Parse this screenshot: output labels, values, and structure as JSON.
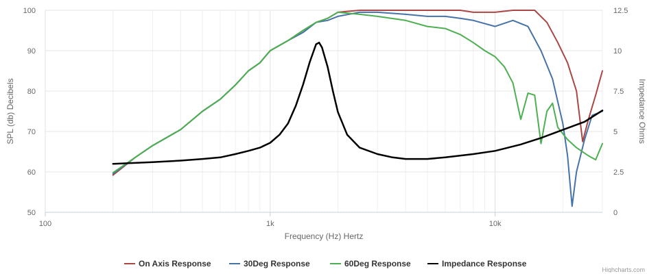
{
  "chart_data": {
    "type": "line",
    "xlabel": "Frequency (Hz) Hertz",
    "ylabel": "SPL (db) Decibels",
    "y2label": "Impedance Ohms",
    "x_scale": "log",
    "xlim": [
      100,
      30000
    ],
    "ylim": [
      50,
      100
    ],
    "y2lim": [
      0,
      12.5
    ],
    "x_ticks": [
      {
        "value": 100,
        "label": "100"
      },
      {
        "value": 1000,
        "label": "1k"
      },
      {
        "value": 10000,
        "label": "10k"
      }
    ],
    "y_ticks": [
      {
        "value": 50,
        "label": "50"
      },
      {
        "value": 60,
        "label": "60"
      },
      {
        "value": 70,
        "label": "70"
      },
      {
        "value": 80,
        "label": "80"
      },
      {
        "value": 90,
        "label": "90"
      },
      {
        "value": 100,
        "label": "100"
      }
    ],
    "y2_ticks": [
      {
        "value": 0,
        "label": "0"
      },
      {
        "value": 2.5,
        "label": "2.5"
      },
      {
        "value": 5,
        "label": "5"
      },
      {
        "value": 7.5,
        "label": "7.5"
      },
      {
        "value": 10,
        "label": "10"
      },
      {
        "value": 12.5,
        "label": "12.5"
      }
    ],
    "grid": true,
    "legend_position": "bottom-center",
    "credits": "Highcharts.com",
    "series": [
      {
        "name": "On Axis Response",
        "color": "#aa4643",
        "axis": "left",
        "points": [
          [
            200,
            59.2
          ],
          [
            250,
            63.5
          ],
          [
            300,
            66.5
          ],
          [
            400,
            70.5
          ],
          [
            500,
            75
          ],
          [
            600,
            78
          ],
          [
            700,
            81.5
          ],
          [
            800,
            85
          ],
          [
            900,
            87
          ],
          [
            1000,
            90
          ],
          [
            1200,
            92.5
          ],
          [
            1400,
            95
          ],
          [
            1600,
            97
          ],
          [
            1800,
            98
          ],
          [
            2000,
            99.5
          ],
          [
            2500,
            100
          ],
          [
            3000,
            100
          ],
          [
            4000,
            100
          ],
          [
            5000,
            100
          ],
          [
            6000,
            100
          ],
          [
            7000,
            100
          ],
          [
            8000,
            99.5
          ],
          [
            10000,
            99.5
          ],
          [
            12000,
            100
          ],
          [
            14000,
            100
          ],
          [
            15000,
            100
          ],
          [
            17000,
            97
          ],
          [
            19000,
            92
          ],
          [
            21000,
            87
          ],
          [
            23000,
            80
          ],
          [
            24500,
            67.5
          ],
          [
            26000,
            73
          ],
          [
            28000,
            79
          ],
          [
            30000,
            85
          ]
        ]
      },
      {
        "name": "30Deg Response",
        "color": "#4572a7",
        "axis": "left",
        "points": [
          [
            200,
            59.5
          ],
          [
            250,
            63.5
          ],
          [
            300,
            66.5
          ],
          [
            400,
            70.5
          ],
          [
            500,
            75
          ],
          [
            600,
            78
          ],
          [
            700,
            81.5
          ],
          [
            800,
            85
          ],
          [
            900,
            87
          ],
          [
            1000,
            90
          ],
          [
            1200,
            92.5
          ],
          [
            1400,
            94.5
          ],
          [
            1600,
            97
          ],
          [
            1800,
            97.5
          ],
          [
            2000,
            98.5
          ],
          [
            2500,
            99.5
          ],
          [
            3000,
            99.5
          ],
          [
            4000,
            99
          ],
          [
            5000,
            98.5
          ],
          [
            6000,
            98.5
          ],
          [
            7000,
            98
          ],
          [
            8000,
            97.5
          ],
          [
            10000,
            96
          ],
          [
            12000,
            97.5
          ],
          [
            14000,
            96
          ],
          [
            16000,
            90
          ],
          [
            18000,
            83
          ],
          [
            20000,
            72
          ],
          [
            21000,
            64
          ],
          [
            22000,
            51.5
          ],
          [
            23000,
            60
          ],
          [
            25000,
            68
          ],
          [
            27000,
            74
          ],
          [
            30000,
            75
          ]
        ]
      },
      {
        "name": "60Deg Response",
        "color": "#4caf50",
        "axis": "left",
        "points": [
          [
            200,
            59.8
          ],
          [
            250,
            63.5
          ],
          [
            300,
            66.5
          ],
          [
            400,
            70.5
          ],
          [
            500,
            75
          ],
          [
            600,
            78
          ],
          [
            700,
            81.5
          ],
          [
            800,
            85
          ],
          [
            900,
            87
          ],
          [
            1000,
            90
          ],
          [
            1200,
            92.5
          ],
          [
            1400,
            95
          ],
          [
            1600,
            97
          ],
          [
            1800,
            98
          ],
          [
            2000,
            99.5
          ],
          [
            2500,
            99
          ],
          [
            3000,
            98.5
          ],
          [
            4000,
            97.5
          ],
          [
            5000,
            96
          ],
          [
            6000,
            95.5
          ],
          [
            7000,
            94
          ],
          [
            8000,
            92
          ],
          [
            9000,
            90
          ],
          [
            10000,
            88.5
          ],
          [
            11000,
            86
          ],
          [
            12000,
            82
          ],
          [
            13000,
            73
          ],
          [
            14000,
            79.5
          ],
          [
            15000,
            79
          ],
          [
            16000,
            67
          ],
          [
            17000,
            75
          ],
          [
            18000,
            77
          ],
          [
            19000,
            71
          ],
          [
            21000,
            68
          ],
          [
            23000,
            66
          ],
          [
            26000,
            64
          ],
          [
            28000,
            63
          ],
          [
            30000,
            67
          ]
        ]
      },
      {
        "name": "Impedance Response",
        "color": "#000000",
        "axis": "right",
        "points": [
          [
            200,
            3
          ],
          [
            300,
            3.1
          ],
          [
            400,
            3.2
          ],
          [
            500,
            3.3
          ],
          [
            600,
            3.4
          ],
          [
            700,
            3.6
          ],
          [
            800,
            3.8
          ],
          [
            900,
            4
          ],
          [
            1000,
            4.3
          ],
          [
            1100,
            4.8
          ],
          [
            1200,
            5.5
          ],
          [
            1300,
            6.6
          ],
          [
            1400,
            7.9
          ],
          [
            1500,
            9.3
          ],
          [
            1600,
            10.4
          ],
          [
            1650,
            10.5
          ],
          [
            1700,
            10.2
          ],
          [
            1800,
            9
          ],
          [
            1900,
            7.5
          ],
          [
            2000,
            6.2
          ],
          [
            2200,
            4.8
          ],
          [
            2500,
            4
          ],
          [
            3000,
            3.6
          ],
          [
            3500,
            3.4
          ],
          [
            4000,
            3.3
          ],
          [
            5000,
            3.3
          ],
          [
            6000,
            3.4
          ],
          [
            8000,
            3.6
          ],
          [
            10000,
            3.8
          ],
          [
            13000,
            4.2
          ],
          [
            16000,
            4.6
          ],
          [
            20000,
            5.1
          ],
          [
            25000,
            5.6
          ],
          [
            30000,
            6.3
          ]
        ]
      }
    ]
  }
}
